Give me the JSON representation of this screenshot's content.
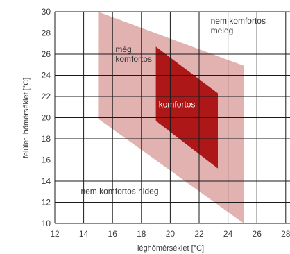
{
  "chart_data": {
    "type": "area",
    "xlabel": "léghőmérséklet [°C]",
    "ylabel": "felületi hőmérséklet [°C]",
    "xlim": [
      12,
      28
    ],
    "ylim": [
      10,
      30
    ],
    "x_ticks": [
      12,
      14,
      16,
      18,
      20,
      22,
      24,
      26,
      28
    ],
    "y_ticks": [
      10,
      12,
      14,
      16,
      18,
      20,
      22,
      24,
      26,
      28,
      30
    ],
    "grid": true,
    "regions": [
      {
        "name": "még komfortos",
        "color": "#e2b2b1",
        "polygon": [
          [
            15,
            30
          ],
          [
            25.1,
            24.9
          ],
          [
            25.1,
            10
          ],
          [
            15,
            19.9
          ]
        ]
      },
      {
        "name": "komfortos",
        "color": "#ae1718",
        "polygon": [
          [
            19,
            26.7
          ],
          [
            23.3,
            22.3
          ],
          [
            23.3,
            15.2
          ],
          [
            19,
            19.7
          ]
        ]
      }
    ],
    "annotations": [
      {
        "id": "warm",
        "lines": [
          "nem komfortos",
          "meleg"
        ],
        "x": 22.8,
        "y": 28.9,
        "color": "#333333"
      },
      {
        "id": "still",
        "lines": [
          "még",
          "komfortos"
        ],
        "x": 16.2,
        "y": 26.2,
        "color": "#333333"
      },
      {
        "id": "comfort",
        "lines": [
          "komfortos"
        ],
        "x": 19.2,
        "y": 21.0,
        "color": "#ffffff"
      },
      {
        "id": "cold",
        "lines": [
          "nem komfortos hideg"
        ],
        "x": 13.8,
        "y": 12.8,
        "color": "#333333"
      }
    ]
  }
}
